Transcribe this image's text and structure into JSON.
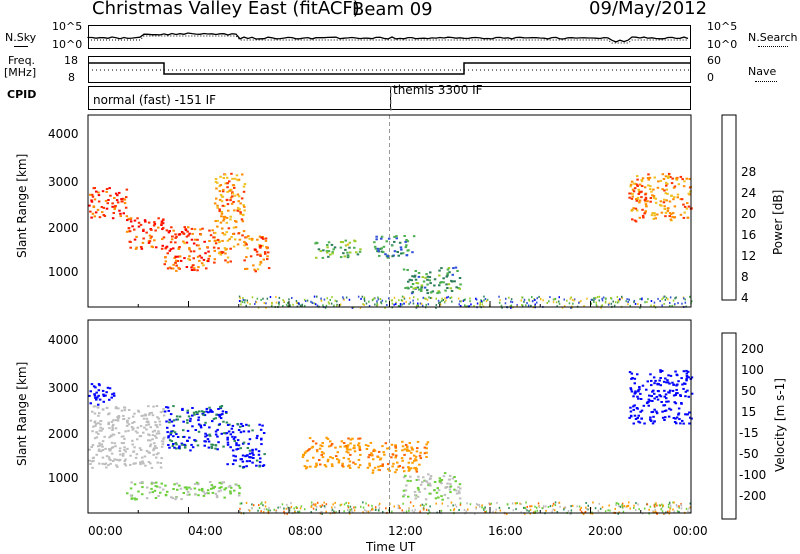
{
  "header": {
    "title": "Christmas Valley East (fitACF)",
    "beam": "Beam 09",
    "date": "09/May/2012"
  },
  "top_panels": {
    "nsky_label": "N.Sky",
    "nsearch_label": "N.Search",
    "counts_ticks": [
      "10^5",
      "10^0"
    ],
    "freq_label_1": "Freq.",
    "freq_label_2": "[MHz]",
    "freq_ticks": [
      "18",
      "8"
    ],
    "nave_label": "Nave",
    "nave_ticks": [
      "60",
      "0"
    ],
    "cpid_label": "CPID",
    "cpid_1": "normal (fast) -151 IF",
    "cpid_2": "themis 3300 IF"
  },
  "x_axis": {
    "label": "Time UT",
    "ticks": [
      "00:00",
      "04:00",
      "08:00",
      "12:00",
      "16:00",
      "20:00",
      "00:00"
    ]
  },
  "power_panel": {
    "ylabel": "Slant Range [km]",
    "y_ticks": [
      "4000",
      "3000",
      "2000",
      "1000"
    ],
    "colorbar_label": "Power [dB]",
    "colorbar_ticks": [
      "28",
      "24",
      "20",
      "16",
      "12",
      "8",
      "4"
    ]
  },
  "velocity_panel": {
    "ylabel": "Slant Range [km]",
    "y_ticks": [
      "4000",
      "3000",
      "2000",
      "1000"
    ],
    "colorbar_label": "Velocity [m s-1]",
    "colorbar_ticks": [
      "200",
      "100",
      "50",
      "15",
      "-15",
      "-50",
      "-100",
      "-200"
    ]
  },
  "colors": {
    "power_scale": [
      "#0000ff",
      "#2f4fd8",
      "#2e7d5a",
      "#4caf50",
      "#9ccc2a",
      "#f0c020",
      "#ff8c00",
      "#ff3000",
      "#ff0000"
    ],
    "velocity_scale": [
      "#ff0000",
      "#ff6000",
      "#ff9c00",
      "#bdbdbd",
      "#6ccf3a",
      "#2e8b57",
      "#0000ff"
    ],
    "ground_scatter": "#bdbdbd"
  },
  "chart_data": [
    {
      "type": "heatmap",
      "title": "Power",
      "xlabel": "Time UT",
      "ylabel": "Slant Range [km]",
      "xlim": [
        0,
        24
      ],
      "ylim": [
        180,
        4500
      ],
      "colorbar": {
        "label": "Power [dB]",
        "range": [
          0,
          30
        ]
      },
      "echo_regions": [
        {
          "t_start": 0.0,
          "t_end": 1.5,
          "range_start": 2200,
          "range_end": 2900,
          "value": 26
        },
        {
          "t_start": 1.5,
          "t_end": 3.0,
          "range_start": 1500,
          "range_end": 2200,
          "value": 27
        },
        {
          "t_start": 3.0,
          "t_end": 5.0,
          "range_start": 1000,
          "range_end": 2000,
          "value": 25
        },
        {
          "t_start": 5.0,
          "t_end": 6.2,
          "range_start": 1200,
          "range_end": 3200,
          "value": 22
        },
        {
          "t_start": 6.2,
          "t_end": 7.2,
          "range_start": 1000,
          "range_end": 1800,
          "value": 24
        },
        {
          "t_start": 9.0,
          "t_end": 10.8,
          "range_start": 1300,
          "range_end": 1700,
          "value": 12
        },
        {
          "t_start": 11.3,
          "t_end": 13.0,
          "range_start": 1300,
          "range_end": 1800,
          "value": 8
        },
        {
          "t_start": 12.5,
          "t_end": 14.8,
          "range_start": 500,
          "range_end": 1100,
          "value": 10
        },
        {
          "t_start": 21.5,
          "t_end": 24.0,
          "range_start": 2100,
          "range_end": 3200,
          "value": 22
        }
      ]
    },
    {
      "type": "heatmap",
      "title": "Velocity",
      "xlabel": "Time UT",
      "ylabel": "Slant Range [km]",
      "xlim": [
        0,
        24
      ],
      "ylim": [
        180,
        4500
      ],
      "colorbar": {
        "label": "Velocity [m s-1]",
        "range": [
          -200,
          200
        ]
      },
      "echo_regions": [
        {
          "t_start": 0.0,
          "t_end": 1.0,
          "range_start": 2600,
          "range_end": 3100,
          "value": 200
        },
        {
          "t_start": 0.0,
          "t_end": 3.0,
          "range_start": 1200,
          "range_end": 2600,
          "value": 0
        },
        {
          "t_start": 3.0,
          "t_end": 5.5,
          "range_start": 1600,
          "range_end": 2600,
          "value": 180
        },
        {
          "t_start": 5.5,
          "t_end": 7.0,
          "range_start": 1200,
          "range_end": 2200,
          "value": 190
        },
        {
          "t_start": 1.5,
          "t_end": 6.0,
          "range_start": 500,
          "range_end": 900,
          "value": 40
        },
        {
          "t_start": 8.5,
          "t_end": 10.8,
          "range_start": 1200,
          "range_end": 1900,
          "value": -80
        },
        {
          "t_start": 11.0,
          "t_end": 13.5,
          "range_start": 1100,
          "range_end": 1800,
          "value": -90
        },
        {
          "t_start": 12.5,
          "t_end": 14.8,
          "range_start": 500,
          "range_end": 1100,
          "value": 30
        },
        {
          "t_start": 21.5,
          "t_end": 24.0,
          "range_start": 2200,
          "range_end": 3400,
          "value": 200
        }
      ]
    }
  ]
}
